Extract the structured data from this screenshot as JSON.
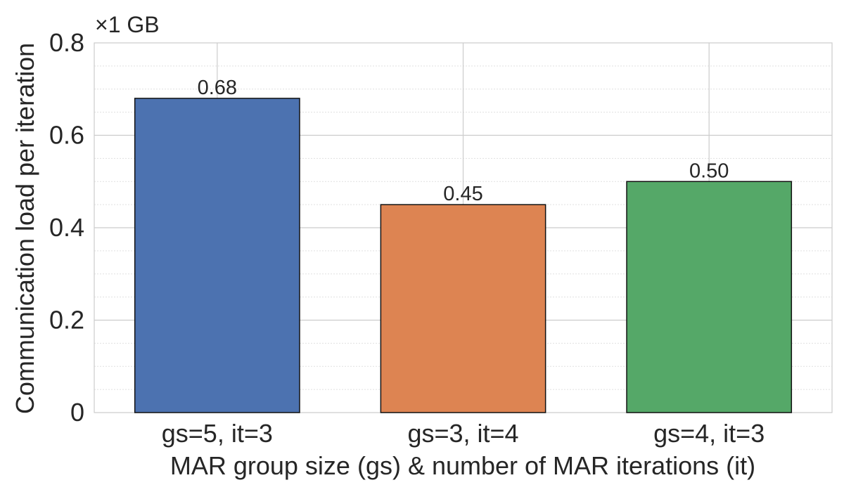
{
  "chart_data": {
    "type": "bar",
    "title": "",
    "scale_label": "×1 GB",
    "xlabel": "MAR group size (gs) & number of MAR iterations (it)",
    "ylabel": "Communication load per iteration",
    "categories": [
      "gs=5, it=3",
      "gs=3, it=4",
      "gs=4, it=3"
    ],
    "values": [
      0.68,
      0.45,
      0.5
    ],
    "value_labels": [
      "0.68",
      "0.45",
      "0.50"
    ],
    "colors": [
      "#4c72b0",
      "#dd8452",
      "#55a868"
    ],
    "ylim": [
      0,
      0.8
    ],
    "yticks": [
      0,
      0.2,
      0.4,
      0.6,
      0.8
    ],
    "ytick_labels": [
      "0",
      "0.2",
      "0.4",
      "0.6",
      "0.8"
    ],
    "minor_yticks": [
      0.05,
      0.1,
      0.15,
      0.25,
      0.3,
      0.35,
      0.45,
      0.5,
      0.55,
      0.65,
      0.7,
      0.75
    ],
    "grid": true
  }
}
